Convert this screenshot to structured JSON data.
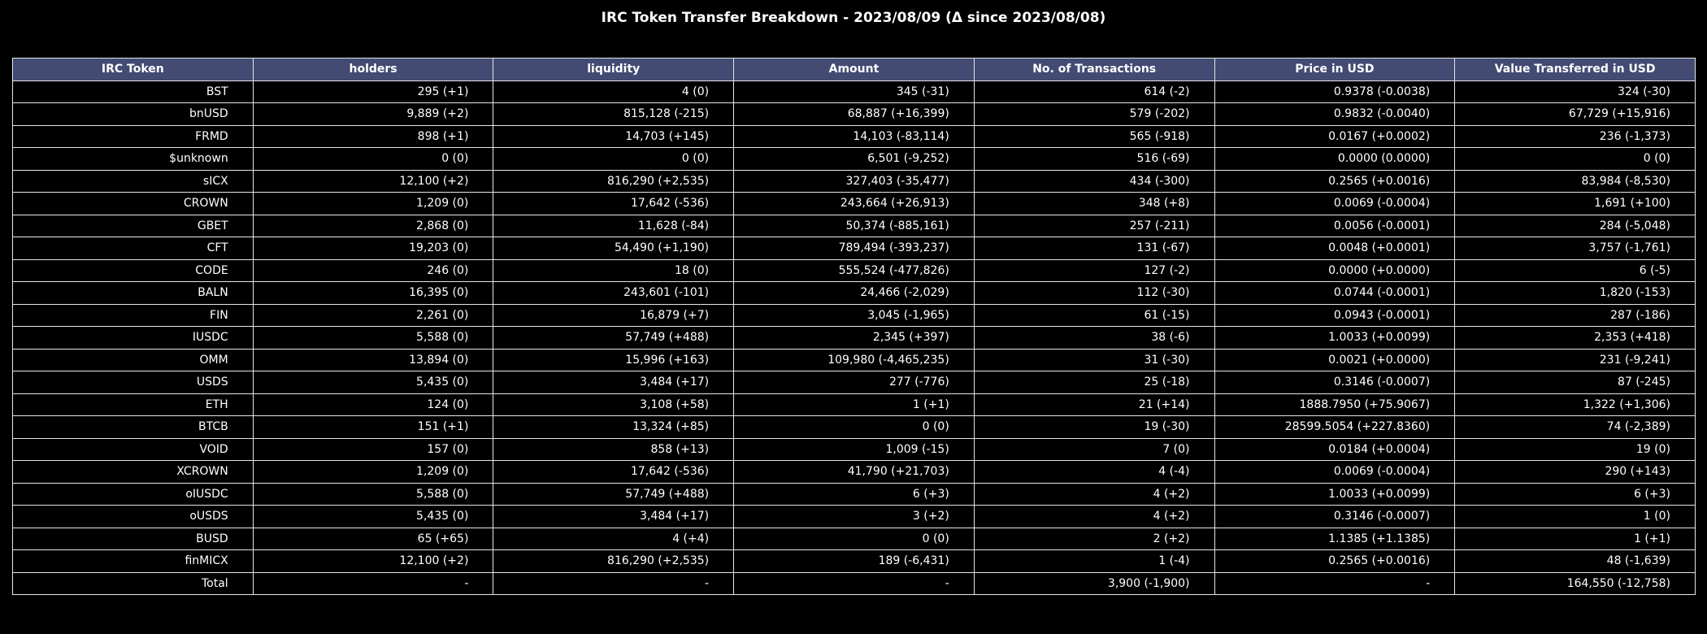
{
  "chart_data": {
    "type": "table",
    "title": "IRC Token Transfer Breakdown - 2023/08/09 (Δ since 2023/08/08)",
    "header_color": "#434b73",
    "background_color": "#000000",
    "columns": [
      "IRC Token",
      "holders",
      "liquidity",
      "Amount",
      "No. of Transactions",
      "Price in USD",
      "Value Transferred in USD"
    ],
    "rows": [
      [
        "BST",
        "295 (+1)",
        "4 (0)",
        "345 (-31)",
        "614 (-2)",
        "0.9378 (-0.0038)",
        "324 (-30)"
      ],
      [
        "bnUSD",
        "9,889 (+2)",
        "815,128 (-215)",
        "68,887 (+16,399)",
        "579 (-202)",
        "0.9832 (-0.0040)",
        "67,729 (+15,916)"
      ],
      [
        "FRMD",
        "898 (+1)",
        "14,703 (+145)",
        "14,103 (-83,114)",
        "565 (-918)",
        "0.0167 (+0.0002)",
        "236 (-1,373)"
      ],
      [
        "$unknown",
        "0 (0)",
        "0 (0)",
        "6,501 (-9,252)",
        "516 (-69)",
        "0.0000 (0.0000)",
        "0 (0)"
      ],
      [
        "sICX",
        "12,100 (+2)",
        "816,290 (+2,535)",
        "327,403 (-35,477)",
        "434 (-300)",
        "0.2565 (+0.0016)",
        "83,984 (-8,530)"
      ],
      [
        "CROWN",
        "1,209 (0)",
        "17,642 (-536)",
        "243,664 (+26,913)",
        "348 (+8)",
        "0.0069 (-0.0004)",
        "1,691 (+100)"
      ],
      [
        "GBET",
        "2,868 (0)",
        "11,628 (-84)",
        "50,374 (-885,161)",
        "257 (-211)",
        "0.0056 (-0.0001)",
        "284 (-5,048)"
      ],
      [
        "CFT",
        "19,203 (0)",
        "54,490 (+1,190)",
        "789,494 (-393,237)",
        "131 (-67)",
        "0.0048 (+0.0001)",
        "3,757 (-1,761)"
      ],
      [
        "CODE",
        "246 (0)",
        "18 (0)",
        "555,524 (-477,826)",
        "127 (-2)",
        "0.0000 (+0.0000)",
        "6 (-5)"
      ],
      [
        "BALN",
        "16,395 (0)",
        "243,601 (-101)",
        "24,466 (-2,029)",
        "112 (-30)",
        "0.0744 (-0.0001)",
        "1,820 (-153)"
      ],
      [
        "FIN",
        "2,261 (0)",
        "16,879 (+7)",
        "3,045 (-1,965)",
        "61 (-15)",
        "0.0943 (-0.0001)",
        "287 (-186)"
      ],
      [
        "IUSDC",
        "5,588 (0)",
        "57,749 (+488)",
        "2,345 (+397)",
        "38 (-6)",
        "1.0033 (+0.0099)",
        "2,353 (+418)"
      ],
      [
        "OMM",
        "13,894 (0)",
        "15,996 (+163)",
        "109,980 (-4,465,235)",
        "31 (-30)",
        "0.0021 (+0.0000)",
        "231 (-9,241)"
      ],
      [
        "USDS",
        "5,435 (0)",
        "3,484 (+17)",
        "277 (-776)",
        "25 (-18)",
        "0.3146 (-0.0007)",
        "87 (-245)"
      ],
      [
        "ETH",
        "124 (0)",
        "3,108 (+58)",
        "1 (+1)",
        "21 (+14)",
        "1888.7950 (+75.9067)",
        "1,322 (+1,306)"
      ],
      [
        "BTCB",
        "151 (+1)",
        "13,324 (+85)",
        "0 (0)",
        "19 (-30)",
        "28599.5054 (+227.8360)",
        "74 (-2,389)"
      ],
      [
        "VOID",
        "157 (0)",
        "858 (+13)",
        "1,009 (-15)",
        "7 (0)",
        "0.0184 (+0.0004)",
        "19 (0)"
      ],
      [
        "XCROWN",
        "1,209 (0)",
        "17,642 (-536)",
        "41,790 (+21,703)",
        "4 (-4)",
        "0.0069 (-0.0004)",
        "290 (+143)"
      ],
      [
        "oIUSDC",
        "5,588 (0)",
        "57,749 (+488)",
        "6 (+3)",
        "4 (+2)",
        "1.0033 (+0.0099)",
        "6 (+3)"
      ],
      [
        "oUSDS",
        "5,435 (0)",
        "3,484 (+17)",
        "3 (+2)",
        "4 (+2)",
        "0.3146 (-0.0007)",
        "1 (0)"
      ],
      [
        "BUSD",
        "65 (+65)",
        "4 (+4)",
        "0 (0)",
        "2 (+2)",
        "1.1385 (+1.1385)",
        "1 (+1)"
      ],
      [
        "finMICX",
        "12,100 (+2)",
        "816,290 (+2,535)",
        "189 (-6,431)",
        "1 (-4)",
        "0.2565 (+0.0016)",
        "48 (-1,639)"
      ],
      [
        "Total",
        "-",
        "-",
        "-",
        "3,900 (-1,900)",
        "-",
        "164,550 (-12,758)"
      ]
    ]
  }
}
